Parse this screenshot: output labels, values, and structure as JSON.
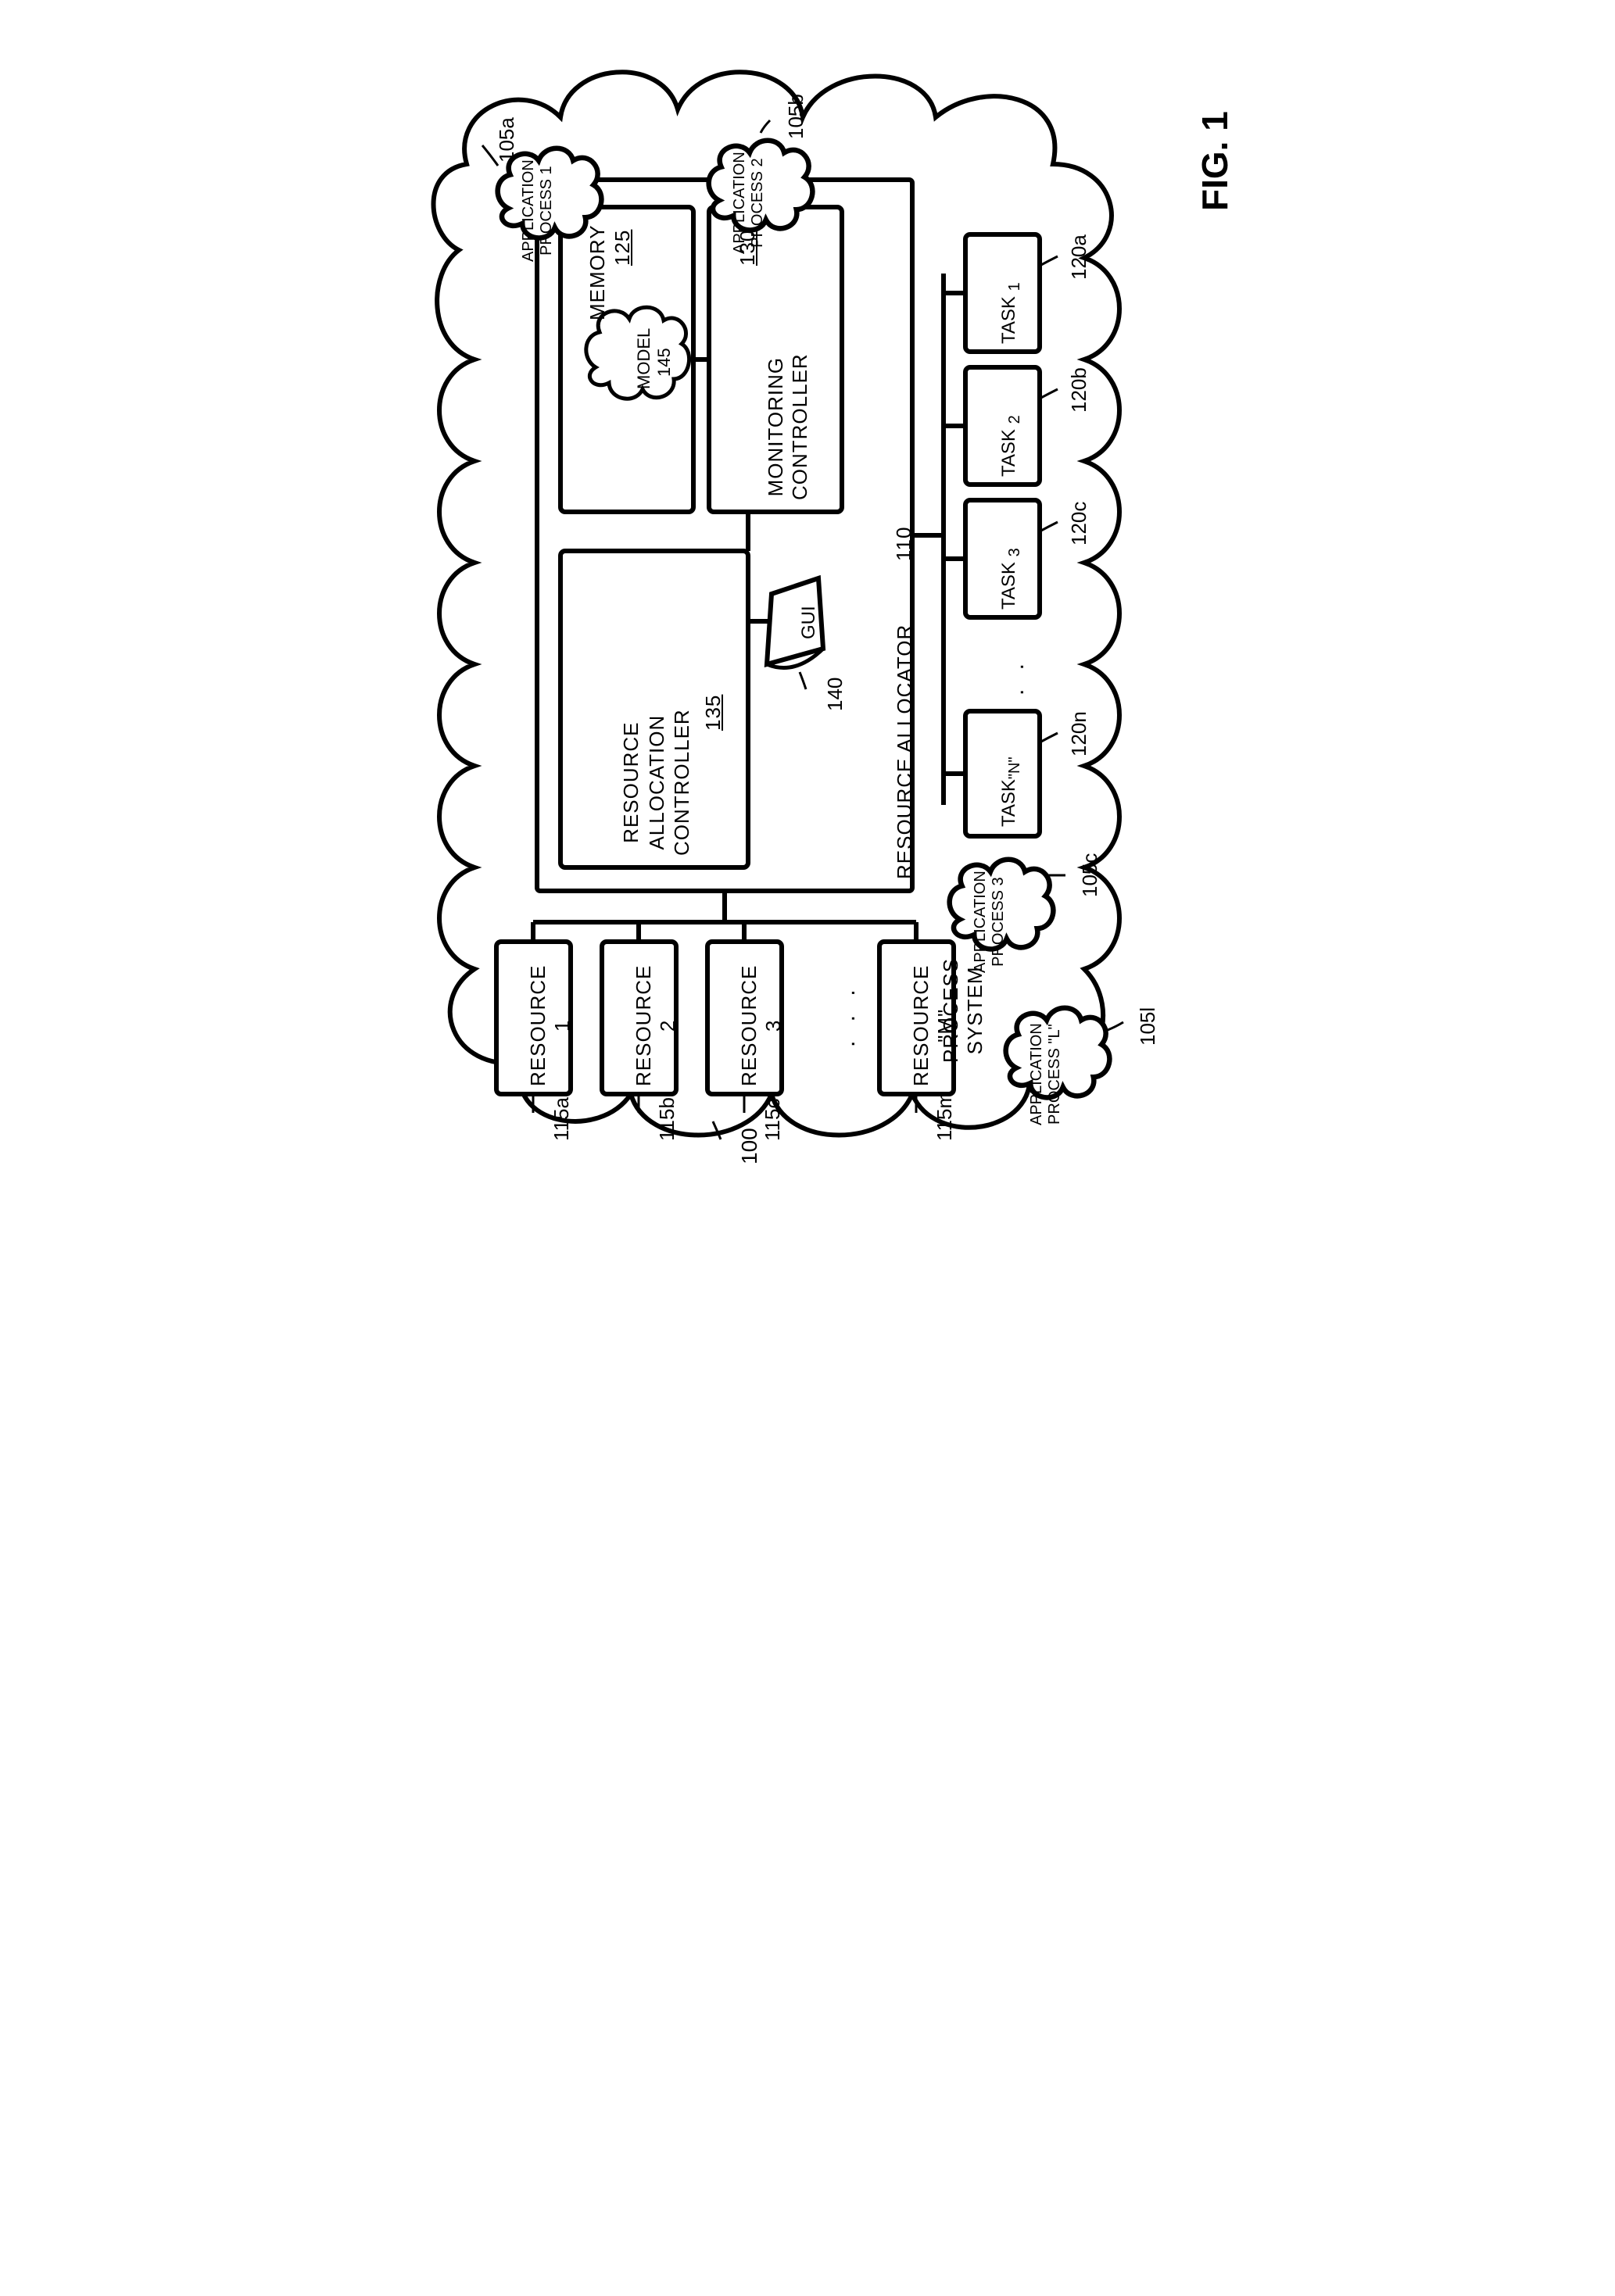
{
  "figure_title": "FIG. 1",
  "system_label": "PROCESS\nSYSTEM",
  "system_ref": "100",
  "app_processes": [
    {
      "label": "APPLICATION\nPROCESS 1",
      "ref": "105a"
    },
    {
      "label": "APPLICATION\nPROCESS 2",
      "ref": "105b"
    },
    {
      "label": "APPLICATION\nPROCESS 3",
      "ref": "105c"
    },
    {
      "label": "APPLICATION\nPROCESS \"L\"",
      "ref": "105l"
    }
  ],
  "resource_allocator": {
    "label": "RESOURCE ALLOCATOR",
    "ref": "110"
  },
  "memory": {
    "label": "MEMORY",
    "ref": "125"
  },
  "model": {
    "label": "MODEL",
    "ref": "145"
  },
  "monitoring": {
    "label": "MONITORING\nCONTROLLER",
    "ref": "130"
  },
  "rac": {
    "label": "RESOURCE\nALLOCATION\nCONTROLLER",
    "ref": "135"
  },
  "gui": {
    "label": "GUI",
    "ref": "140"
  },
  "tasks": [
    {
      "label": "TASK",
      "sub": "1",
      "ref": "120a"
    },
    {
      "label": "TASK",
      "sub": "2",
      "ref": "120b"
    },
    {
      "label": "TASK",
      "sub": "3",
      "ref": "120c"
    },
    {
      "label": "TASK",
      "sub": "\"N\"",
      "ref": "120n"
    }
  ],
  "resources": [
    {
      "label": "RESOURCE\n1",
      "ref": "115a"
    },
    {
      "label": "RESOURCE\n2",
      "ref": "115b"
    },
    {
      "label": "RESOURCE\n3",
      "ref": "115c"
    },
    {
      "label": "RESOURCE\n\"M\"",
      "ref": "115m"
    }
  ],
  "ellipsis_tasks": ". .",
  "ellipsis_resources": ". . .",
  "style": {
    "stroke": "#000000",
    "strokeWidth": 6,
    "fill": "none",
    "bg": "#ffffff",
    "font_family": "Arial, Helvetica, sans-serif",
    "font_size_block": 26,
    "font_size_ref": 26,
    "font_size_title": 42,
    "corner_radius": 16
  }
}
